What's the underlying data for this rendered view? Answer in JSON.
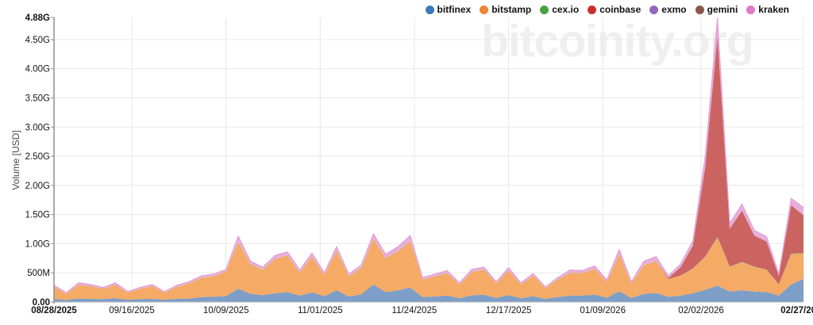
{
  "watermark": "bitcoinity.org",
  "y_axis": {
    "title": "Volume [USD]",
    "ticks": [
      {
        "label": "4.88G",
        "value_musd": 4880,
        "bold": true
      },
      {
        "label": "4.50G",
        "value_musd": 4500,
        "bold": false
      },
      {
        "label": "4.00G",
        "value_musd": 4000,
        "bold": false
      },
      {
        "label": "3.50G",
        "value_musd": 3500,
        "bold": false
      },
      {
        "label": "3.00G",
        "value_musd": 3000,
        "bold": false
      },
      {
        "label": "2.50G",
        "value_musd": 2500,
        "bold": false
      },
      {
        "label": "2.00G",
        "value_musd": 2000,
        "bold": false
      },
      {
        "label": "1.50G",
        "value_musd": 1500,
        "bold": false
      },
      {
        "label": "1.00G",
        "value_musd": 1000,
        "bold": false
      },
      {
        "label": "500M",
        "value_musd": 500,
        "bold": false
      },
      {
        "label": "0.00",
        "value_musd": 0,
        "bold": true
      }
    ]
  },
  "x_axis": {
    "ticks": [
      {
        "label": "08/28/2025",
        "date": "2025-08-28",
        "bold": true
      },
      {
        "label": "09/16/2025",
        "date": "2025-09-16",
        "bold": false
      },
      {
        "label": "10/09/2025",
        "date": "2025-10-09",
        "bold": false
      },
      {
        "label": "11/01/2025",
        "date": "2025-11-01",
        "bold": false
      },
      {
        "label": "11/24/2025",
        "date": "2025-11-24",
        "bold": false
      },
      {
        "label": "12/17/2025",
        "date": "2025-12-17",
        "bold": false
      },
      {
        "label": "01/09/2026",
        "date": "2026-01-09",
        "bold": false
      },
      {
        "label": "02/02/2026",
        "date": "2026-02-02",
        "bold": false
      },
      {
        "label": "02/27/2026",
        "date": "2026-02-27",
        "bold": true
      }
    ]
  },
  "chart_data": {
    "type": "area",
    "stacked": true,
    "ylabel": "Volume [USD]",
    "value_unit": "millions USD",
    "ylim_musd": [
      0,
      4880
    ],
    "grid": true,
    "legend_position": "top-right",
    "x_dates": [
      "2025-08-28",
      "2025-08-31",
      "2025-09-03",
      "2025-09-06",
      "2025-09-09",
      "2025-09-12",
      "2025-09-15",
      "2025-09-18",
      "2025-09-21",
      "2025-09-24",
      "2025-09-27",
      "2025-09-30",
      "2025-10-03",
      "2025-10-06",
      "2025-10-09",
      "2025-10-12",
      "2025-10-15",
      "2025-10-18",
      "2025-10-21",
      "2025-10-24",
      "2025-10-27",
      "2025-10-30",
      "2025-11-02",
      "2025-11-05",
      "2025-11-08",
      "2025-11-11",
      "2025-11-14",
      "2025-11-17",
      "2025-11-20",
      "2025-11-23",
      "2025-11-26",
      "2025-11-29",
      "2025-12-02",
      "2025-12-05",
      "2025-12-08",
      "2025-12-11",
      "2025-12-14",
      "2025-12-17",
      "2025-12-20",
      "2025-12-23",
      "2025-12-26",
      "2025-12-29",
      "2026-01-01",
      "2026-01-04",
      "2026-01-07",
      "2026-01-10",
      "2026-01-13",
      "2026-01-16",
      "2026-01-19",
      "2026-01-22",
      "2026-01-25",
      "2026-01-28",
      "2026-01-31",
      "2026-02-03",
      "2026-02-06",
      "2026-02-09",
      "2026-02-12",
      "2026-02-15",
      "2026-02-18",
      "2026-02-21",
      "2026-02-24",
      "2026-02-27"
    ],
    "series": [
      {
        "name": "bitfinex",
        "color": "#3a7ab8",
        "fill": "#7d9ec7",
        "values_musd": [
          55,
          35,
          60,
          55,
          50,
          65,
          40,
          50,
          55,
          40,
          55,
          60,
          85,
          90,
          100,
          230,
          140,
          120,
          150,
          170,
          110,
          165,
          100,
          200,
          95,
          130,
          300,
          170,
          200,
          250,
          85,
          95,
          110,
          65,
          115,
          125,
          70,
          120,
          65,
          100,
          55,
          85,
          110,
          110,
          125,
          75,
          185,
          70,
          140,
          155,
          90,
          110,
          150,
          210,
          280,
          180,
          200,
          180,
          170,
          110,
          300,
          400
        ]
      },
      {
        "name": "bitstamp",
        "color": "#ee8436",
        "fill": "#f5aa65",
        "values_musd": [
          205,
          105,
          235,
          215,
          175,
          230,
          120,
          175,
          215,
          120,
          205,
          260,
          330,
          350,
          420,
          800,
          510,
          435,
          590,
          625,
          395,
          615,
          360,
          680,
          345,
          450,
          780,
          580,
          670,
          790,
          300,
          345,
          385,
          235,
          400,
          425,
          250,
          420,
          235,
          350,
          180,
          300,
          390,
          385,
          440,
          270,
          630,
          245,
          490,
          545,
          300,
          340,
          420,
          560,
          820,
          420,
          480,
          420,
          380,
          190,
          520,
          430
        ]
      },
      {
        "name": "cex.io",
        "color": "#47a23f",
        "fill": "#9dc98e",
        "values_musd": [
          2,
          2,
          2,
          2,
          2,
          2,
          2,
          2,
          2,
          2,
          2,
          2,
          3,
          3,
          3,
          5,
          4,
          4,
          4,
          4,
          4,
          4,
          4,
          5,
          4,
          4,
          5,
          4,
          5,
          5,
          3,
          3,
          3,
          3,
          3,
          3,
          3,
          3,
          3,
          3,
          3,
          3,
          3,
          3,
          3,
          3,
          4,
          3,
          4,
          4,
          3,
          4,
          5,
          8,
          10,
          6,
          7,
          6,
          6,
          4,
          8,
          7
        ]
      },
      {
        "name": "coinbase",
        "color": "#c9302c",
        "fill": "#cb6361",
        "values_musd": [
          0,
          0,
          0,
          0,
          0,
          0,
          0,
          0,
          0,
          0,
          0,
          0,
          0,
          0,
          0,
          0,
          0,
          0,
          0,
          0,
          0,
          0,
          0,
          0,
          0,
          0,
          0,
          0,
          0,
          0,
          0,
          0,
          0,
          0,
          0,
          0,
          0,
          0,
          0,
          0,
          0,
          0,
          0,
          0,
          0,
          0,
          0,
          0,
          0,
          0,
          20,
          140,
          390,
          1530,
          3450,
          650,
          880,
          530,
          480,
          140,
          830,
          650
        ]
      },
      {
        "name": "exmo",
        "color": "#9467bd",
        "fill": "#bb9dd4",
        "values_musd": [
          2,
          1,
          2,
          2,
          2,
          2,
          1,
          1,
          1,
          1,
          1,
          1,
          1,
          1,
          1,
          2,
          1,
          1,
          1,
          1,
          1,
          1,
          1,
          1,
          1,
          1,
          2,
          1,
          1,
          2,
          1,
          1,
          1,
          1,
          1,
          1,
          1,
          1,
          1,
          1,
          1,
          1,
          1,
          1,
          1,
          1,
          1,
          1,
          1,
          1,
          1,
          1,
          2,
          3,
          4,
          3,
          3,
          3,
          2,
          2,
          3,
          3
        ]
      },
      {
        "name": "gemini",
        "color": "#8c564b",
        "fill": "#ae8277",
        "values_musd": [
          1,
          1,
          1,
          1,
          1,
          1,
          1,
          1,
          1,
          1,
          1,
          1,
          1,
          1,
          1,
          3,
          1,
          1,
          1,
          1,
          1,
          1,
          1,
          1,
          1,
          1,
          3,
          1,
          1,
          3,
          1,
          1,
          1,
          1,
          1,
          1,
          1,
          1,
          1,
          1,
          1,
          1,
          1,
          1,
          1,
          1,
          1,
          1,
          1,
          1,
          1,
          1,
          3,
          4,
          6,
          4,
          4,
          4,
          3,
          3,
          4,
          4
        ]
      },
      {
        "name": "kraken",
        "color": "#e077c8",
        "fill": "#e8aedd",
        "values_musd": [
          25,
          16,
          30,
          25,
          20,
          30,
          16,
          21,
          26,
          16,
          26,
          26,
          30,
          35,
          35,
          90,
          44,
          39,
          54,
          59,
          39,
          54,
          34,
          63,
          34,
          44,
          80,
          64,
          73,
          90,
          30,
          35,
          40,
          25,
          40,
          45,
          25,
          45,
          25,
          35,
          20,
          30,
          45,
          40,
          50,
          30,
          79,
          30,
          64,
          74,
          35,
          55,
          80,
          185,
          310,
          87,
          106,
          87,
          79,
          31,
          115,
          126
        ]
      }
    ]
  },
  "style": {
    "grid_color": "#e8e8e8",
    "axis_color": "#8f8f8f",
    "baseline_color": "#b5b5b5",
    "envelope_stroke": "#e39bd3"
  }
}
